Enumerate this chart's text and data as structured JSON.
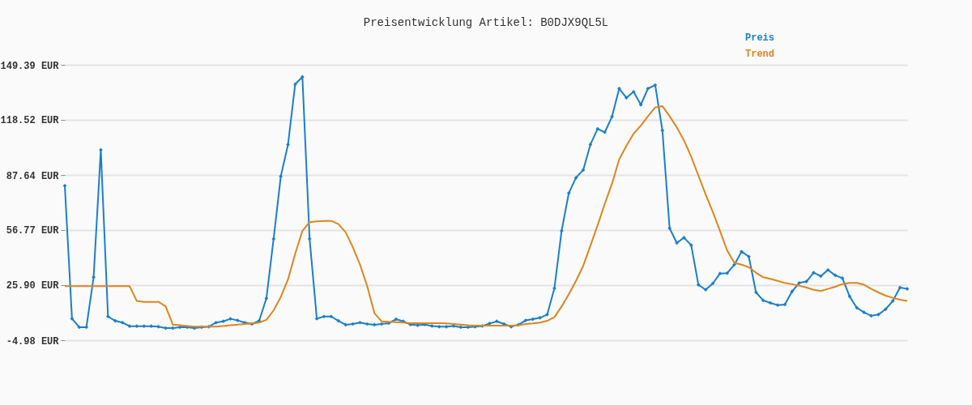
{
  "chart_data": {
    "type": "line",
    "title": "Preisentwicklung Artikel: B0DJX9QL5L",
    "categories": [
      null,
      null,
      null,
      null,
      null,
      null,
      null,
      null,
      null,
      null,
      null,
      null,
      null,
      null,
      null,
      null,
      null,
      null,
      null,
      null,
      null,
      null,
      null,
      null,
      null,
      null,
      null,
      null,
      null,
      null,
      null,
      null,
      null,
      null,
      null,
      null,
      null,
      null,
      null,
      null,
      null,
      null,
      null,
      null,
      null,
      null,
      null,
      null,
      null,
      null,
      null,
      null,
      null,
      null,
      null,
      null,
      null,
      null,
      null,
      null,
      null,
      null,
      null,
      null,
      null,
      null,
      null,
      null,
      null,
      null,
      null,
      null,
      null,
      null,
      null,
      null,
      null,
      null,
      null,
      null,
      null,
      null,
      null,
      null,
      null,
      null,
      null,
      null,
      null,
      null,
      null,
      null,
      null,
      null,
      null,
      null,
      null,
      null,
      null,
      null,
      null,
      null,
      null,
      null,
      null,
      null,
      null,
      null,
      null,
      null,
      null,
      null,
      null,
      null,
      null,
      null,
      null,
      null
    ],
    "series": [
      {
        "name": "Preis",
        "color": "#1a7fcc",
        "marker": "diamond",
        "values": [
          81.6,
          7.1,
          2.3,
          2.3,
          30.3,
          101.7,
          8.3,
          5.9,
          4.9,
          2.9,
          2.9,
          2.9,
          2.9,
          2.6,
          1.8,
          1.8,
          2.3,
          2.3,
          1.8,
          2.3,
          2.6,
          4.9,
          5.6,
          7.0,
          6.1,
          4.9,
          4.1,
          5.9,
          18.5,
          51.8,
          86.9,
          104.7,
          138.5,
          142.6,
          51.8,
          7.1,
          8.3,
          8.3,
          5.9,
          3.7,
          4.1,
          4.9,
          4.1,
          3.7,
          4.1,
          4.6,
          6.8,
          5.6,
          3.8,
          3.4,
          3.8,
          3.0,
          2.6,
          2.6,
          3.0,
          2.3,
          2.3,
          2.6,
          3.0,
          4.4,
          5.6,
          4.1,
          2.6,
          3.7,
          6.1,
          6.8,
          7.6,
          9.4,
          24.1,
          56.3,
          77.5,
          86.1,
          90.4,
          104.7,
          113.5,
          111.6,
          120.3,
          136.1,
          130.9,
          134.3,
          127.0,
          136.1,
          138.0,
          112.6,
          57.8,
          49.5,
          52.5,
          48.3,
          26.1,
          23.3,
          26.8,
          32.4,
          32.6,
          37.4,
          44.7,
          41.9,
          21.8,
          17.3,
          15.9,
          14.7,
          15.0,
          22.3,
          27.1,
          27.9,
          32.9,
          30.9,
          34.4,
          31.4,
          29.8,
          19.6,
          13.2,
          10.6,
          8.7,
          9.4,
          12.4,
          17.0,
          24.5,
          23.8
        ]
      },
      {
        "name": "Trend",
        "color": "#e0841a",
        "marker": "none",
        "values": [
          25.3,
          25.3,
          25.3,
          25.3,
          25.3,
          25.3,
          25.3,
          25.3,
          25.3,
          25.3,
          17.0,
          16.5,
          16.5,
          16.5,
          14.0,
          3.8,
          3.4,
          3.0,
          2.6,
          2.6,
          2.6,
          2.6,
          3.0,
          3.4,
          3.8,
          4.1,
          4.4,
          4.9,
          6.4,
          11.7,
          19.3,
          29.1,
          43.5,
          56.3,
          61.2,
          61.6,
          61.9,
          61.9,
          60.1,
          55.6,
          47.2,
          37.4,
          25.3,
          10.2,
          5.6,
          5.3,
          5.1,
          4.9,
          4.6,
          4.6,
          4.6,
          4.6,
          4.6,
          4.4,
          4.1,
          3.8,
          3.4,
          3.2,
          3.2,
          3.2,
          3.2,
          3.2,
          3.2,
          3.4,
          4.1,
          4.4,
          4.9,
          5.9,
          7.9,
          13.9,
          20.8,
          28.3,
          36.7,
          48.0,
          59.4,
          71.5,
          82.8,
          96.4,
          104.0,
          110.8,
          115.3,
          120.6,
          125.5,
          126.2,
          120.6,
          114.3,
          107.0,
          97.9,
          87.3,
          76.8,
          66.9,
          56.3,
          45.3,
          38.4,
          37.4,
          35.9,
          32.9,
          30.3,
          29.4,
          28.3,
          27.1,
          26.4,
          25.6,
          24.5,
          23.3,
          22.6,
          23.8,
          25.0,
          26.5,
          27.1,
          27.1,
          26.1,
          23.8,
          21.8,
          20.0,
          18.8,
          17.7,
          17.0
        ]
      }
    ],
    "ylim": [
      -4.98,
      149.39
    ],
    "yticks": [
      {
        "value": -4.98,
        "label": "-4.98 EUR"
      },
      {
        "value": 25.9,
        "label": "25.90 EUR"
      },
      {
        "value": 56.77,
        "label": "56.77 EUR"
      },
      {
        "value": 87.64,
        "label": "87.64 EUR"
      },
      {
        "value": 118.52,
        "label": "118.52 EUR"
      },
      {
        "value": 149.39,
        "label": "149.39 EUR"
      }
    ],
    "grid": "y",
    "legend": "top right",
    "tick_labels": "y"
  }
}
